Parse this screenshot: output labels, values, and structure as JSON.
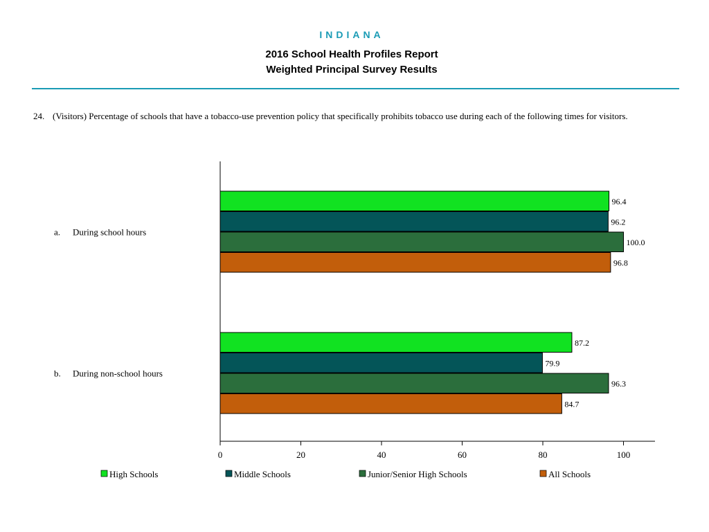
{
  "header": {
    "state": "INDIANA",
    "title_line1": "2016 School Health Profiles Report",
    "title_line2": "Weighted Principal Survey Results"
  },
  "question": {
    "number": "24.",
    "text": "(Visitors) Percentage of schools that have a tobacco-use prevention policy that specifically prohibits tobacco use during each of the following times for visitors."
  },
  "chart_data": {
    "type": "bar",
    "orientation": "horizontal",
    "categories": [
      {
        "letter": "a.",
        "label": "During school hours"
      },
      {
        "letter": "b.",
        "label": "During non-school hours"
      }
    ],
    "series": [
      {
        "name": "High Schools",
        "color": "#11e221",
        "values": [
          96.4,
          87.2
        ],
        "labels": [
          "96.4",
          "87.2"
        ]
      },
      {
        "name": "Middle Schools",
        "color": "#045558",
        "values": [
          96.2,
          79.9
        ],
        "labels": [
          "96.2",
          "79.9"
        ]
      },
      {
        "name": "Junior/Senior High Schools",
        "color": "#2b6e3c",
        "values": [
          100.0,
          96.3
        ],
        "labels": [
          "100.0",
          "96.3"
        ]
      },
      {
        "name": "All Schools",
        "color": "#c25e0b",
        "values": [
          96.8,
          84.7
        ],
        "labels": [
          "96.8",
          "84.7"
        ]
      }
    ],
    "xlim": [
      0,
      100
    ],
    "xticks": [
      "0",
      "20",
      "40",
      "60",
      "80",
      "100"
    ],
    "grid": false,
    "legend_position": "bottom"
  }
}
